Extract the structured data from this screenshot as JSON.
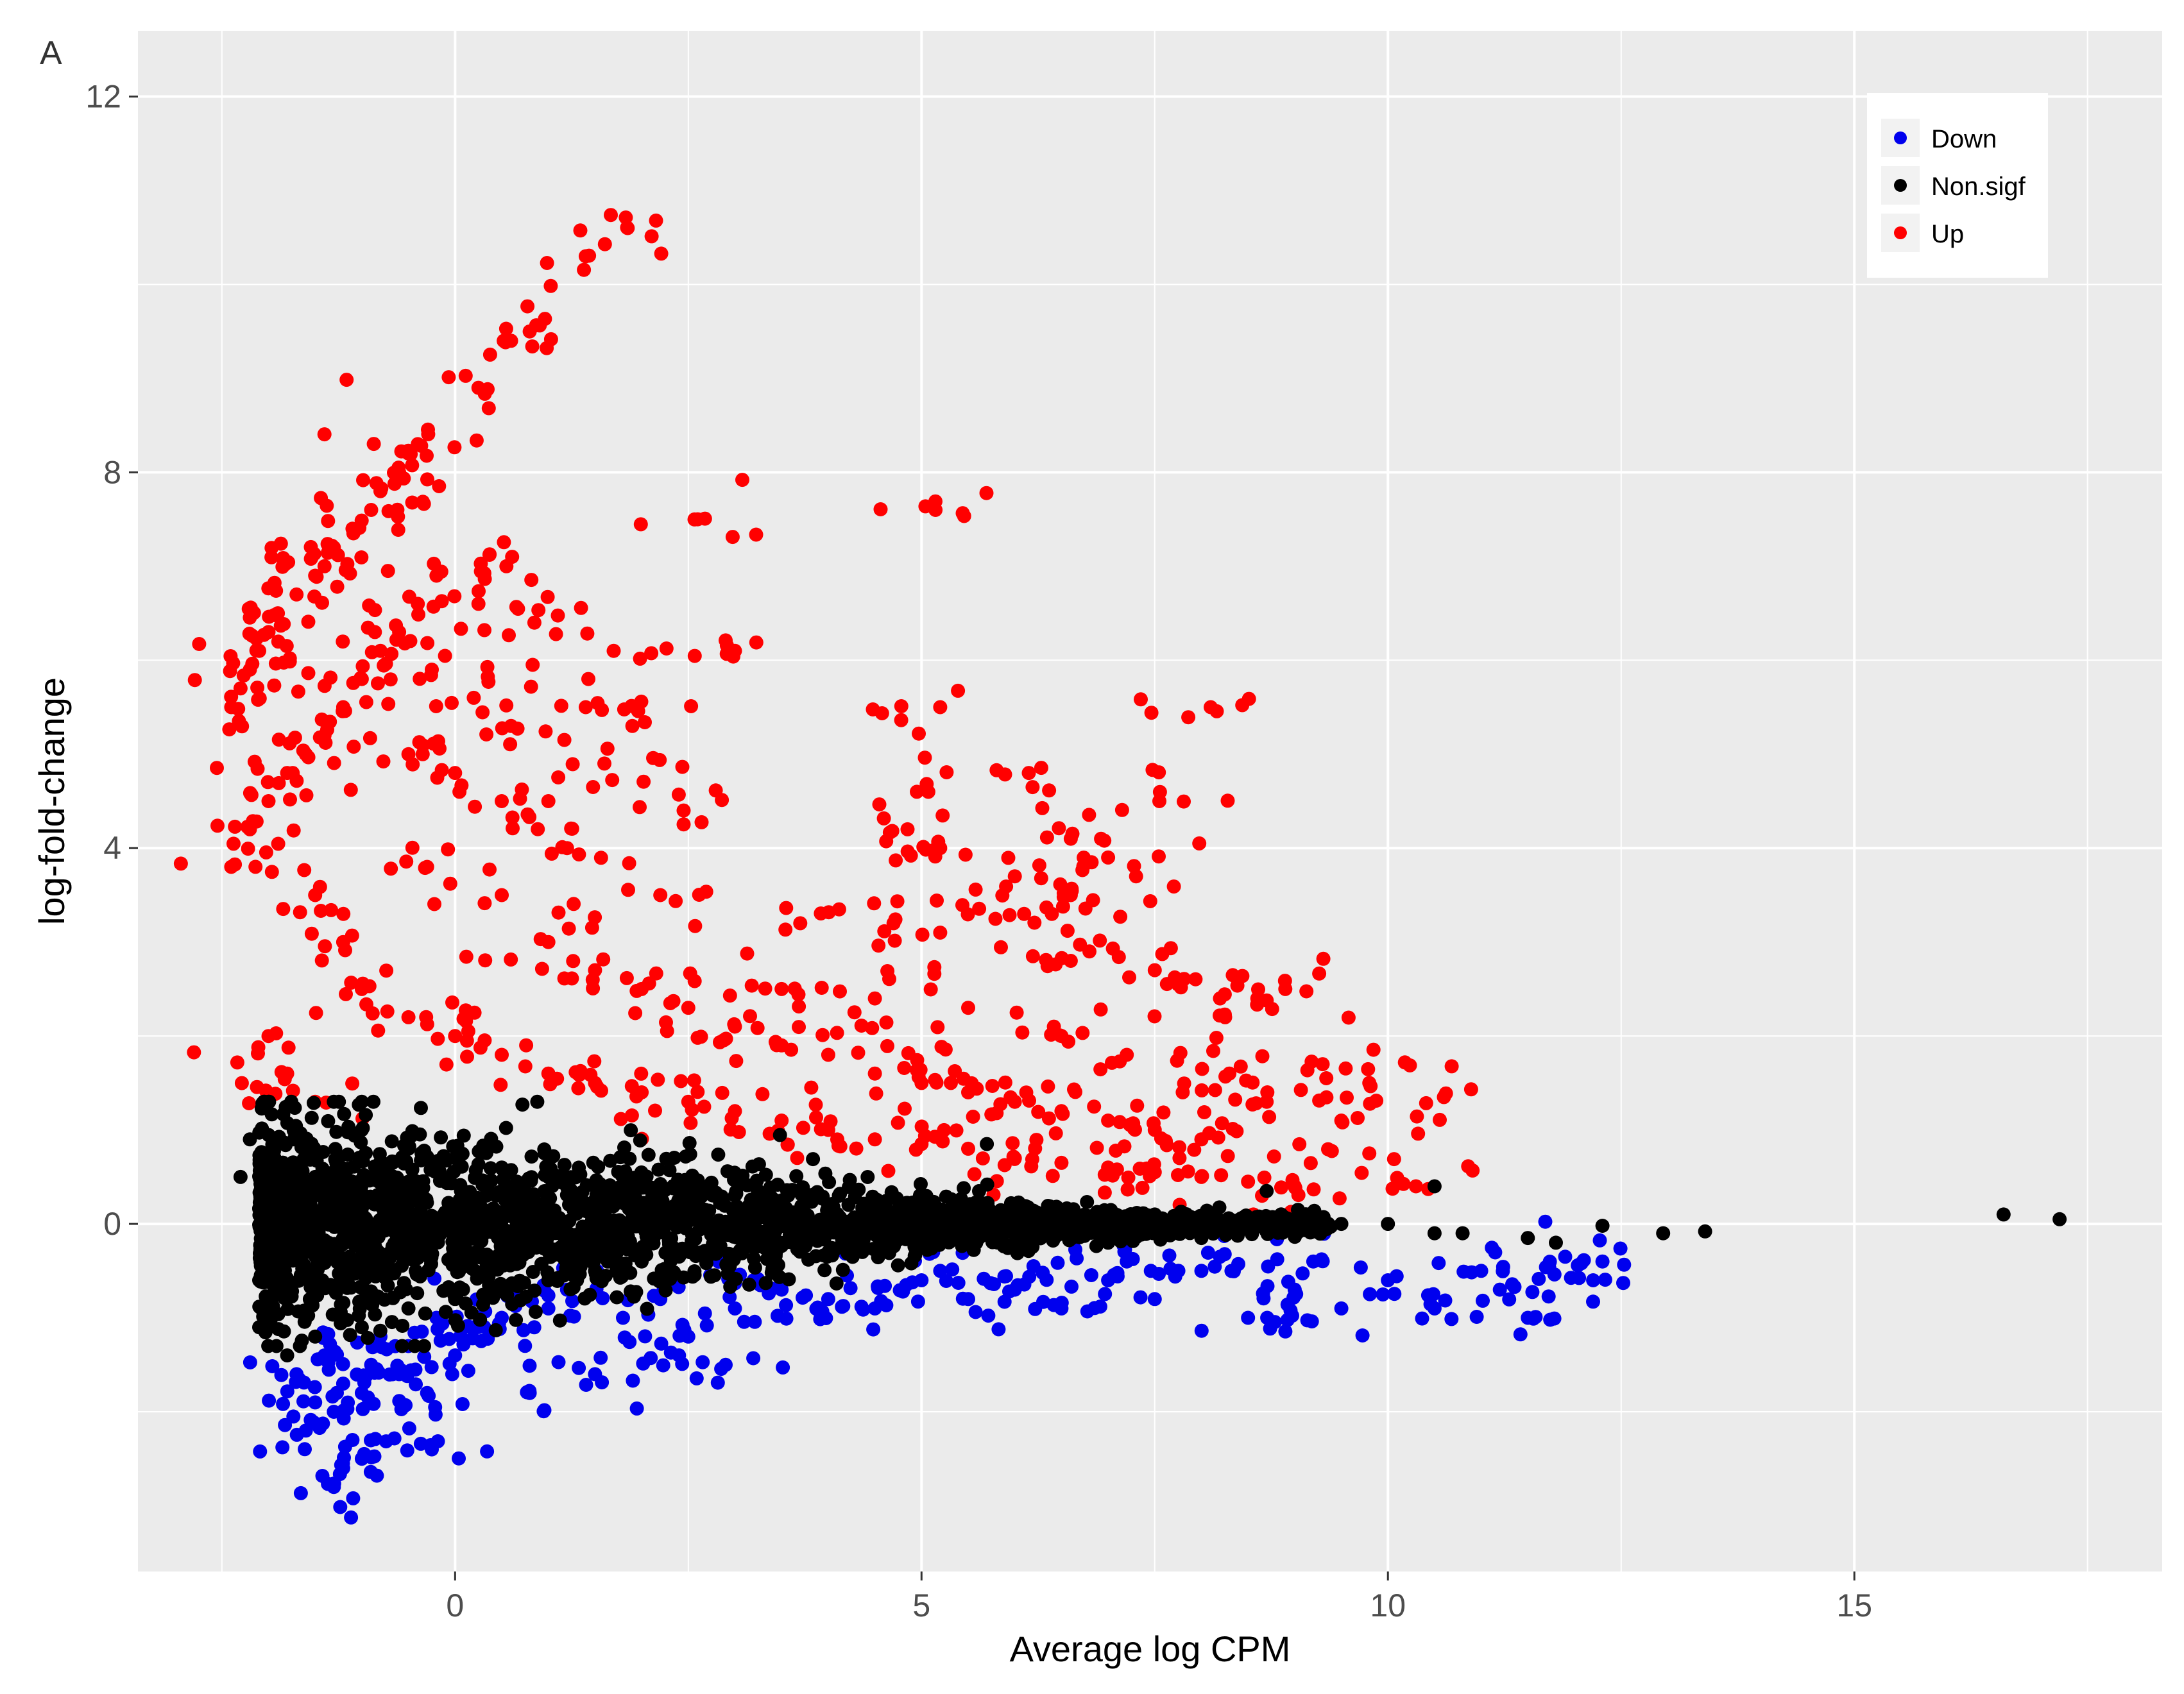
{
  "panel_label": "A",
  "chart_data": {
    "type": "scatter",
    "title": "",
    "xlabel": "Average log CPM",
    "ylabel": "log-fold-change",
    "xlim": [
      -3.4,
      18.3
    ],
    "ylim": [
      -3.7,
      12.7
    ],
    "x_ticks": [
      0,
      5,
      10,
      15
    ],
    "x_tick_labels": [
      "0",
      "5",
      "10",
      "15"
    ],
    "y_ticks": [
      0,
      4,
      8,
      12
    ],
    "y_tick_labels": [
      "0",
      "4",
      "8",
      "12"
    ],
    "grid": true,
    "legend_position": "top-right",
    "colors": {
      "Down": "#0000ee",
      "Non.sigf": "#000000",
      "Up": "#ff0000",
      "panel_bg": "#ebebeb",
      "grid": "#ffffff"
    },
    "series": [
      {
        "name": "Down",
        "color": "#0000ee",
        "points": [
          [
            -1.4,
            -1.4
          ],
          [
            -1.2,
            -1.7
          ],
          [
            -1.3,
            -2.0
          ],
          [
            -1.1,
            -2.3
          ],
          [
            -1.0,
            -2.5
          ],
          [
            -1.6,
            -2.2
          ],
          [
            -1.2,
            -2.6
          ],
          [
            -1.3,
            -2.8
          ],
          [
            -0.9,
            -1.5
          ],
          [
            -0.6,
            -1.6
          ],
          [
            -0.3,
            -1.8
          ],
          [
            -0.25,
            -2.4
          ],
          [
            0.8,
            -1.8
          ],
          [
            1.5,
            -1.6
          ],
          [
            2.4,
            -1.4
          ],
          [
            2.9,
            -1.5
          ],
          [
            -0.8,
            -1.2
          ],
          [
            -0.5,
            -1.3
          ],
          [
            0.2,
            -1.1
          ],
          [
            0.5,
            -1.0
          ],
          [
            1.0,
            -0.9
          ],
          [
            1.8,
            -1.0
          ],
          [
            2.2,
            -0.8
          ],
          [
            3.0,
            -0.9
          ],
          [
            3.5,
            -0.7
          ],
          [
            4.0,
            -0.8
          ],
          [
            4.5,
            -0.9
          ],
          [
            5.0,
            -0.6
          ],
          [
            5.5,
            -0.8
          ],
          [
            6.0,
            -0.7
          ],
          [
            6.5,
            -0.9
          ],
          [
            7.0,
            -0.6
          ],
          [
            7.5,
            -0.8
          ],
          [
            8.0,
            -0.5
          ],
          [
            8.5,
            -1.0
          ],
          [
            9.0,
            -0.7
          ],
          [
            9.5,
            -0.9
          ],
          [
            10.0,
            -0.6
          ],
          [
            10.5,
            -0.9
          ],
          [
            11.0,
            -0.5
          ],
          [
            11.2,
            -0.7
          ],
          [
            11.5,
            -1.0
          ],
          [
            12.2,
            -0.6
          ],
          [
            12.3,
            -0.4
          ],
          [
            11.9,
            -0.35
          ],
          [
            2.5,
            -1.2
          ],
          [
            3.2,
            -0.6
          ],
          [
            4.2,
            -0.55
          ],
          [
            5.2,
            -0.5
          ],
          [
            6.2,
            -0.45
          ],
          [
            7.2,
            -0.4
          ],
          [
            8.2,
            -0.35
          ],
          [
            9.2,
            -0.4
          ],
          [
            1.2,
            -0.7
          ],
          [
            0.0,
            -1.4
          ],
          [
            -1.7,
            -1.6
          ],
          [
            -1.5,
            -1.9
          ],
          [
            -1.0,
            -1.8
          ],
          [
            -0.2,
            -1.0
          ]
        ]
      },
      {
        "name": "Non.sigf",
        "color": "#000000",
        "points": [
          [
            -2.0,
            1.3
          ],
          [
            -2.2,
            0.9
          ],
          [
            -2.3,
            0.5
          ],
          [
            -2.1,
            -0.6
          ],
          [
            -2.1,
            -1.1
          ],
          [
            -1.8,
            -1.4
          ],
          [
            -1.5,
            -1.2
          ],
          [
            -1.3,
            1.3
          ],
          [
            -1.0,
            1.0
          ],
          [
            -0.5,
            0.8
          ],
          [
            0.0,
            0.7
          ],
          [
            0.5,
            0.6
          ],
          [
            1.0,
            0.5
          ],
          [
            1.5,
            0.4
          ],
          [
            2.0,
            0.4
          ],
          [
            2.5,
            0.3
          ],
          [
            3.0,
            0.3
          ],
          [
            3.5,
            0.25
          ],
          [
            4.0,
            0.2
          ],
          [
            4.5,
            0.2
          ],
          [
            5.0,
            0.15
          ],
          [
            5.5,
            0.15
          ],
          [
            6.0,
            0.12
          ],
          [
            6.5,
            0.12
          ],
          [
            7.0,
            0.1
          ],
          [
            7.5,
            0.1
          ],
          [
            8.0,
            0.08
          ],
          [
            8.5,
            0.05
          ],
          [
            9.0,
            0.05
          ],
          [
            9.5,
            0.0
          ],
          [
            10.0,
            0.0
          ],
          [
            10.5,
            -0.1
          ],
          [
            10.5,
            0.4
          ],
          [
            10.8,
            -0.1
          ],
          [
            11.5,
            -0.15
          ],
          [
            11.8,
            -0.2
          ],
          [
            12.3,
            -0.02
          ],
          [
            12.95,
            -0.1
          ],
          [
            13.4,
            -0.08
          ],
          [
            16.6,
            0.1
          ],
          [
            17.2,
            0.05
          ],
          [
            -0.5,
            -0.9
          ],
          [
            0.0,
            -0.8
          ],
          [
            0.5,
            -0.7
          ],
          [
            1.0,
            -0.6
          ],
          [
            1.5,
            -0.5
          ],
          [
            2.0,
            -0.4
          ],
          [
            3.0,
            -0.35
          ],
          [
            4.0,
            -0.3
          ],
          [
            5.0,
            -0.25
          ],
          [
            6.0,
            -0.2
          ],
          [
            7.0,
            -0.2
          ],
          [
            8.0,
            -0.15
          ],
          [
            9.0,
            -0.1
          ],
          [
            -1.0,
            -1.1
          ],
          [
            -1.5,
            0.5
          ],
          [
            -1.5,
            -0.5
          ],
          [
            -1.0,
            0.0
          ],
          [
            0.0,
            0.0
          ],
          [
            1.0,
            0.0
          ],
          [
            2.0,
            0.0
          ],
          [
            3.0,
            0.0
          ],
          [
            5.7,
            0.85
          ],
          [
            8.7,
            0.35
          ],
          [
            -1.0,
            1.3
          ]
        ]
      },
      {
        "name": "Up",
        "color": "#ff0000",
        "points": [
          [
            -2.4,
            5.5
          ],
          [
            -2.3,
            5.7
          ],
          [
            -2.2,
            5.9
          ],
          [
            -2.1,
            6.1
          ],
          [
            -2.0,
            6.3
          ],
          [
            -1.9,
            6.5
          ],
          [
            -1.7,
            6.7
          ],
          [
            -1.5,
            6.9
          ],
          [
            -1.4,
            7.0
          ],
          [
            -1.3,
            7.2
          ],
          [
            -1.1,
            7.4
          ],
          [
            -0.9,
            7.6
          ],
          [
            -0.8,
            7.8
          ],
          [
            -0.6,
            8.0
          ],
          [
            -0.5,
            8.2
          ],
          [
            -0.4,
            8.3
          ],
          [
            0.25,
            8.9
          ],
          [
            0.6,
            9.4
          ],
          [
            0.8,
            9.5
          ],
          [
            1.4,
            10.3
          ],
          [
            1.85,
            10.6
          ],
          [
            -2.4,
            3.8
          ],
          [
            -2.2,
            4.2
          ],
          [
            -2.0,
            4.5
          ],
          [
            -1.8,
            4.8
          ],
          [
            -1.6,
            5.0
          ],
          [
            -1.4,
            5.2
          ],
          [
            -1.2,
            5.5
          ],
          [
            -1.0,
            5.8
          ],
          [
            -0.8,
            6.1
          ],
          [
            -0.6,
            6.3
          ],
          [
            -0.4,
            6.6
          ],
          [
            -0.2,
            6.9
          ],
          [
            0.55,
            7.0
          ],
          [
            0.85,
            6.4
          ],
          [
            0.25,
            6.6
          ],
          [
            -0.25,
            5.9
          ],
          [
            0.2,
            5.6
          ],
          [
            0.6,
            5.3
          ],
          [
            1.4,
            5.5
          ],
          [
            1.7,
            6.1
          ],
          [
            1.9,
            5.3
          ],
          [
            1.6,
            4.9
          ],
          [
            2.6,
            7.5
          ],
          [
            3.0,
            6.1
          ],
          [
            5.15,
            7.6
          ],
          [
            5.2,
            5.5
          ],
          [
            8.1,
            5.5
          ],
          [
            6.15,
            4.8
          ],
          [
            7.55,
            4.5
          ],
          [
            4.95,
            4.6
          ],
          [
            2.45,
            4.4
          ],
          [
            4.85,
            4.2
          ],
          [
            5.2,
            4.0
          ],
          [
            6.6,
            4.1
          ],
          [
            7.0,
            3.9
          ],
          [
            6.6,
            3.5
          ],
          [
            7.3,
            3.7
          ],
          [
            6.0,
            3.7
          ],
          [
            6.1,
            3.3
          ],
          [
            3.7,
            3.2
          ],
          [
            4.7,
            3.2
          ],
          [
            5.2,
            3.1
          ],
          [
            6.6,
            2.8
          ],
          [
            6.8,
            2.9
          ],
          [
            7.5,
            2.7
          ],
          [
            8.2,
            2.4
          ],
          [
            8.6,
            2.4
          ],
          [
            8.9,
            2.5
          ],
          [
            9.3,
            1.7
          ],
          [
            9.8,
            1.5
          ],
          [
            10.6,
            1.35
          ],
          [
            9.5,
            1.1
          ],
          [
            9.8,
            0.75
          ],
          [
            10.3,
            0.4
          ],
          [
            8.7,
            1.3
          ],
          [
            8.3,
            1.6
          ],
          [
            -1.5,
            3.5
          ],
          [
            -1.2,
            3.0
          ],
          [
            -1.0,
            2.5
          ],
          [
            -0.5,
            2.2
          ],
          [
            0.0,
            2.0
          ],
          [
            0.5,
            1.8
          ],
          [
            1.0,
            1.6
          ],
          [
            1.5,
            1.5
          ],
          [
            2.0,
            1.4
          ],
          [
            2.5,
            1.3
          ],
          [
            3.0,
            1.2
          ],
          [
            3.5,
            1.1
          ],
          [
            4.0,
            1.0
          ],
          [
            4.5,
            0.9
          ],
          [
            5.0,
            0.85
          ],
          [
            5.5,
            0.8
          ],
          [
            6.0,
            0.7
          ],
          [
            6.5,
            0.65
          ],
          [
            7.0,
            0.6
          ],
          [
            7.5,
            0.55
          ],
          [
            8.0,
            0.5
          ],
          [
            8.5,
            0.45
          ],
          [
            9.0,
            0.4
          ],
          [
            -2.0,
            2.0
          ],
          [
            -1.8,
            1.6
          ],
          [
            -1.5,
            1.3
          ],
          [
            -0.3,
            3.8
          ],
          [
            0.5,
            3.5
          ],
          [
            1.0,
            3.0
          ],
          [
            1.5,
            2.7
          ],
          [
            2.0,
            2.5
          ],
          [
            2.5,
            2.3
          ],
          [
            3.0,
            2.1
          ],
          [
            3.5,
            1.9
          ],
          [
            4.0,
            1.8
          ],
          [
            4.5,
            1.6
          ],
          [
            5.0,
            1.5
          ],
          [
            5.5,
            1.4
          ],
          [
            6.0,
            1.3
          ],
          [
            6.5,
            1.2
          ],
          [
            7.0,
            1.1
          ],
          [
            7.5,
            1.0
          ],
          [
            8.0,
            0.9
          ],
          [
            1.0,
            4.5
          ],
          [
            0.5,
            4.5
          ],
          [
            0.0,
            4.8
          ],
          [
            -0.5,
            5.0
          ],
          [
            1.2,
            4.0
          ],
          [
            2.2,
            3.5
          ],
          [
            3.5,
            2.5
          ],
          [
            4.5,
            2.4
          ],
          [
            5.5,
            2.3
          ],
          [
            6.5,
            2.0
          ],
          [
            7.2,
            1.8
          ],
          [
            7.8,
            1.4
          ]
        ]
      }
    ]
  }
}
